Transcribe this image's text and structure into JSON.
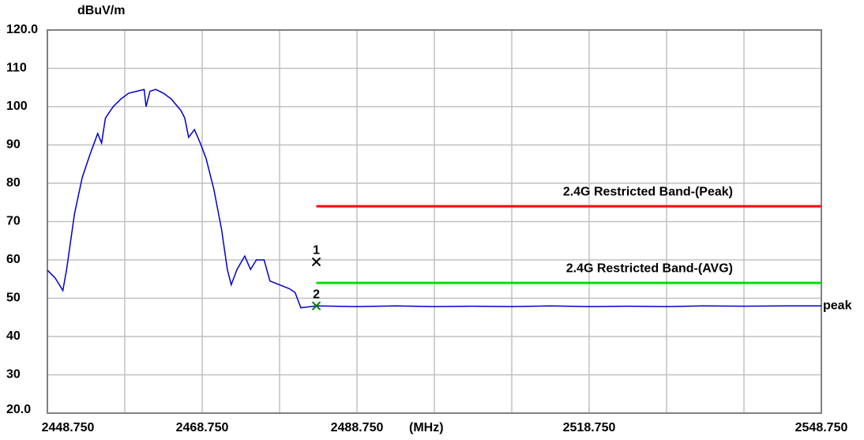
{
  "chart_data": {
    "type": "line",
    "y_label": "dBuV/m",
    "x_unit": "(MHz)",
    "xlim": [
      2448.75,
      2548.75
    ],
    "xticks": [
      {
        "value": 2448.75,
        "label": "2448.750"
      },
      {
        "value": 2468.75,
        "label": "2468.750"
      },
      {
        "value": 2488.75,
        "label": "2488.750"
      },
      {
        "value": 2518.75,
        "label": "2518.750"
      },
      {
        "value": 2548.75,
        "label": "2548.750"
      }
    ],
    "xgrid": [
      2458.75,
      2468.75,
      2478.75,
      2488.75,
      2498.75,
      2508.75,
      2518.75,
      2528.75,
      2538.75
    ],
    "ylim": [
      20,
      120
    ],
    "yticks": [
      {
        "value": 20,
        "label": "20.0"
      },
      30,
      40,
      50,
      60,
      70,
      80,
      90,
      100,
      110,
      {
        "value": 120,
        "label": "120.0"
      }
    ],
    "grid": true,
    "series": [
      {
        "name": "peak",
        "color": "#0000cc",
        "x": [
          2448.75,
          2449.75,
          2450.75,
          2451.25,
          2452.25,
          2453.25,
          2454.25,
          2455.25,
          2455.75,
          2456.25,
          2457.25,
          2458.25,
          2459.25,
          2460.25,
          2461.25,
          2461.5,
          2462,
          2462.75,
          2463.75,
          2464.75,
          2466,
          2466.5,
          2467,
          2467.75,
          2468.5,
          2469.25,
          2470.25,
          2471.25,
          2472,
          2472.5,
          2473.25,
          2474.25,
          2475,
          2475.75,
          2476.75,
          2477.5,
          2478.75,
          2480,
          2480.75,
          2481.5,
          2483.5,
          2488.75,
          2493.75,
          2498.75,
          2503.75,
          2508.75,
          2513.75,
          2518.75,
          2523.75,
          2528.75,
          2533.75,
          2538.75,
          2543.75,
          2548.75
        ],
        "values": [
          57.3,
          55.3,
          52,
          57.7,
          72,
          81.5,
          87.5,
          93,
          90.5,
          97,
          100,
          102,
          103.5,
          104,
          104.5,
          100,
          104,
          104.5,
          103.5,
          102,
          99,
          97,
          92,
          94,
          90.5,
          86.5,
          78.5,
          68,
          57.5,
          53.5,
          57.5,
          61,
          57.5,
          60,
          60,
          54.5,
          53.5,
          52.5,
          51.5,
          47.5,
          48,
          47.8,
          48,
          47.8,
          47.9,
          47.8,
          48,
          47.8,
          47.9,
          47.8,
          48,
          47.9,
          48,
          48
        ]
      },
      {
        "name": "2.4G Restricted Band-(Peak)",
        "color": "#ff0000",
        "x": [
          2483.5,
          2548.75
        ],
        "values": [
          74,
          74
        ]
      },
      {
        "name": "2.4G Restricted Band-(AVG)",
        "color": "#00e000",
        "x": [
          2483.5,
          2548.75
        ],
        "values": [
          54,
          54
        ]
      }
    ],
    "markers": [
      {
        "label": "1",
        "x": 2483.5,
        "y": 59.5,
        "color": "#000000"
      },
      {
        "label": "2",
        "x": 2483.5,
        "y": 48,
        "color": "#008000"
      }
    ]
  }
}
